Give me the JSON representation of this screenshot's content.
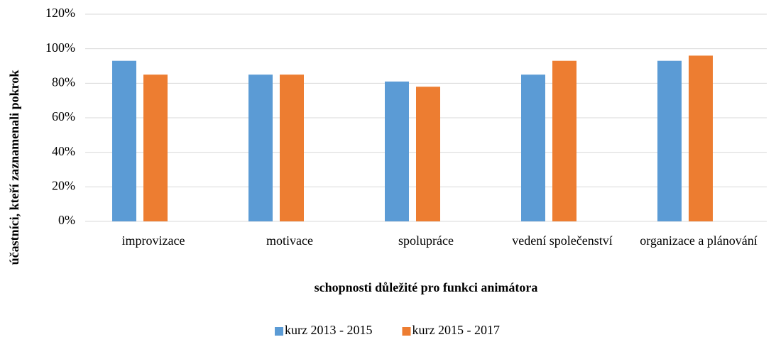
{
  "chart_data": {
    "type": "bar",
    "x_label": "schopnosti důležité pro funkci animátora",
    "y_label": "účastníci, kteří zaznamenali pokrok",
    "categories": [
      "improvizace",
      "motivace",
      "spolupráce",
      "vedení společenství",
      "organizace a plánování"
    ],
    "series": [
      {
        "name": "kurz 2013 - 2015",
        "color": "#5b9bd5",
        "values": [
          93,
          85,
          81,
          85,
          93
        ]
      },
      {
        "name": "kurz 2015 - 2017",
        "color": "#ed7d31",
        "values": [
          85,
          85,
          78,
          93,
          96
        ]
      }
    ],
    "ylim": [
      0,
      120
    ],
    "yticks": [
      {
        "value": 0,
        "label": "0%"
      },
      {
        "value": 20,
        "label": "20%"
      },
      {
        "value": 40,
        "label": "40%"
      },
      {
        "value": 60,
        "label": "60%"
      },
      {
        "value": 80,
        "label": "80%"
      },
      {
        "value": 100,
        "label": "100%"
      },
      {
        "value": 120,
        "label": "120%"
      }
    ],
    "grid": true,
    "legend": "bottom"
  }
}
